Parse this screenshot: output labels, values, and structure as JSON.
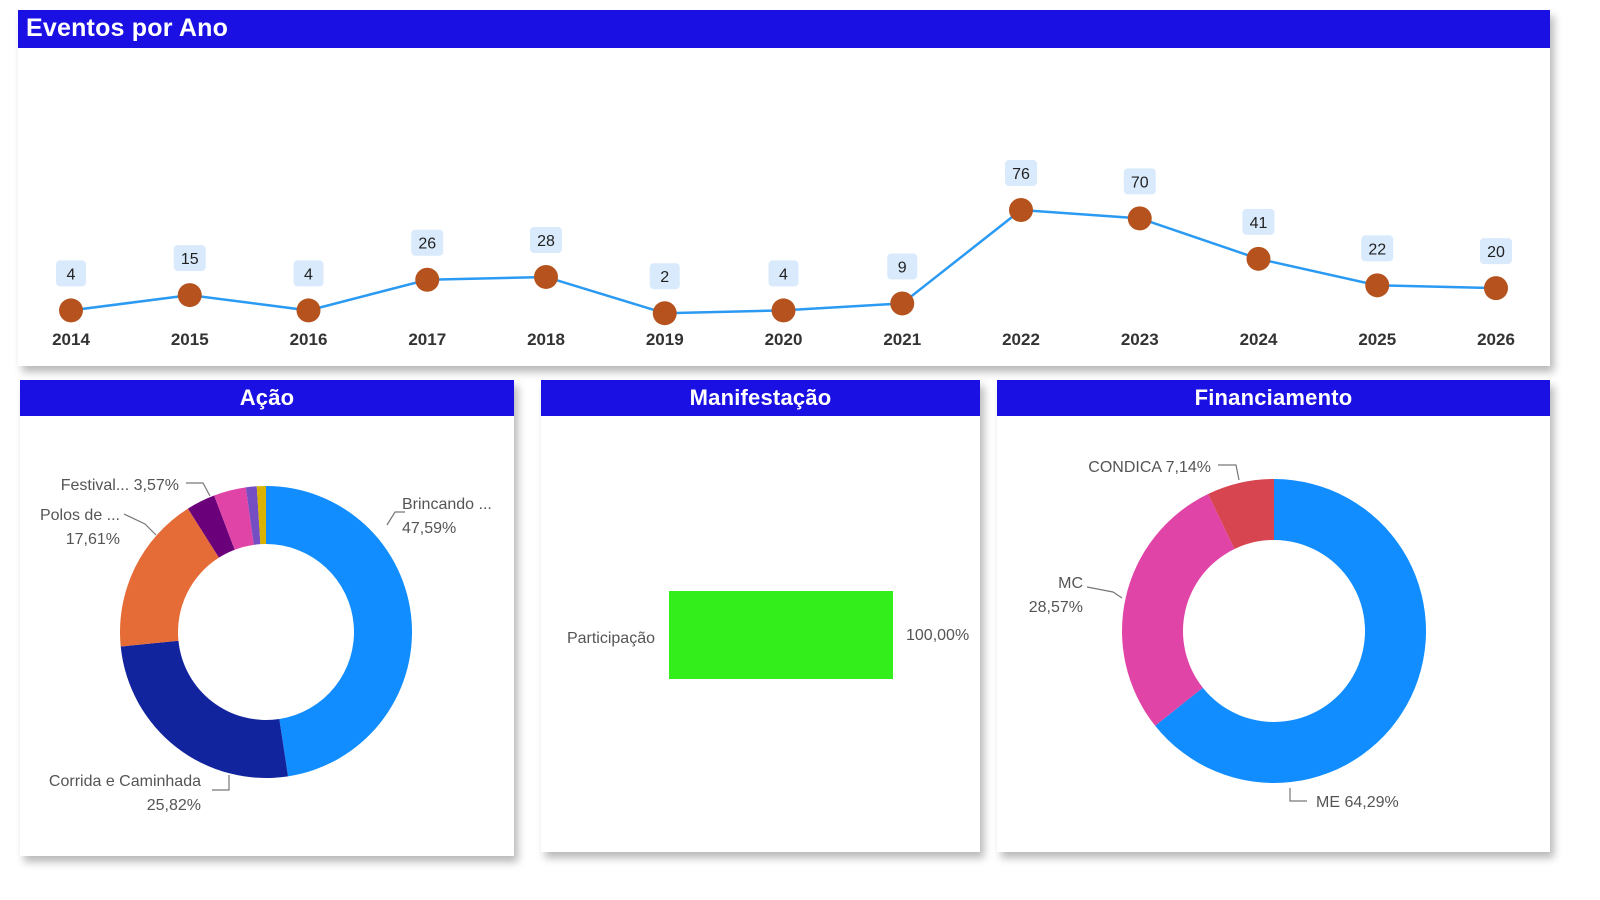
{
  "panels": {
    "line_title": "Eventos por Ano",
    "acao_title": "Ação",
    "manif_title": "Manifestação",
    "fin_title": "Financiamento"
  },
  "colors": {
    "header_bg": "#1b10e3",
    "line": "#2b9af3",
    "marker": "#b5521e",
    "label_bg": "#d9eafc",
    "bar": "#33ee1a"
  },
  "chart_data": [
    {
      "type": "line",
      "title": "Eventos por Ano",
      "x": [
        "2014",
        "2015",
        "2016",
        "2017",
        "2018",
        "2019",
        "2020",
        "2021",
        "2022",
        "2023",
        "2024",
        "2025",
        "2026"
      ],
      "values": [
        4,
        15,
        4,
        26,
        28,
        2,
        4,
        9,
        76,
        70,
        41,
        22,
        20
      ],
      "ylim": [
        0,
        80
      ],
      "grid": false,
      "data_labels": true
    },
    {
      "type": "pie",
      "title": "Ação",
      "donut": true,
      "slices": [
        {
          "label": "Brincando ...",
          "value": 47.59,
          "display": "47,59%",
          "color": "#118dff"
        },
        {
          "label": "Corrida e Caminhada",
          "value": 25.82,
          "display": "25,82%",
          "color": "#12239e"
        },
        {
          "label": "Polos de ...",
          "value": 17.61,
          "display": "17,61%",
          "color": "#e66c37"
        },
        {
          "label": "",
          "value": 3.2,
          "display": "",
          "color": "#6b007b"
        },
        {
          "label": "Festival...",
          "value": 3.57,
          "display": "3,57%",
          "color": "#e044a7"
        },
        {
          "label": "",
          "value": 1.2,
          "display": "",
          "color": "#744ec2"
        },
        {
          "label": "",
          "value": 1.01,
          "display": "",
          "color": "#d9b300"
        }
      ]
    },
    {
      "type": "bar",
      "title": "Manifestação",
      "orientation": "horizontal",
      "categories": [
        "Participação"
      ],
      "values": [
        100
      ],
      "display": [
        "100,00%"
      ],
      "xlim": [
        0,
        100
      ]
    },
    {
      "type": "pie",
      "title": "Financiamento",
      "donut": true,
      "slices": [
        {
          "label": "ME",
          "value": 64.29,
          "display": "64,29%",
          "color": "#118dff"
        },
        {
          "label": "MC",
          "value": 28.57,
          "display": "28,57%",
          "color": "#e044a7"
        },
        {
          "label": "CONDICA",
          "value": 7.14,
          "display": "7,14%",
          "color": "#d64550"
        }
      ]
    }
  ]
}
